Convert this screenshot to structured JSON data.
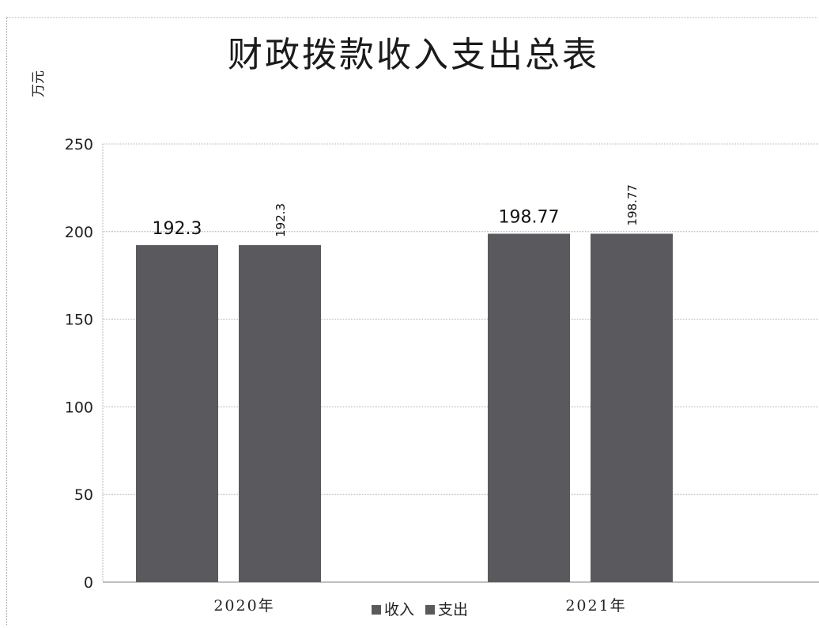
{
  "chart_data": {
    "type": "bar",
    "title": "财政拨款收入支出总表",
    "ylabel": "万元",
    "xlabel": "",
    "categories": [
      "2020年",
      "2021年"
    ],
    "series": [
      {
        "name": "收入",
        "values": [
          192.3,
          198.77
        ],
        "color": "#5a5a5e"
      },
      {
        "name": "支出",
        "values": [
          192.3,
          198.77
        ],
        "color": "#5a5a5e"
      }
    ],
    "ylim": [
      0,
      250
    ],
    "yticks": [
      0,
      50,
      100,
      150,
      200,
      250
    ],
    "data_labels": [
      "192.3",
      "192.3",
      "198.77",
      "198.77"
    ],
    "grid": true,
    "legend_position": "bottom"
  }
}
